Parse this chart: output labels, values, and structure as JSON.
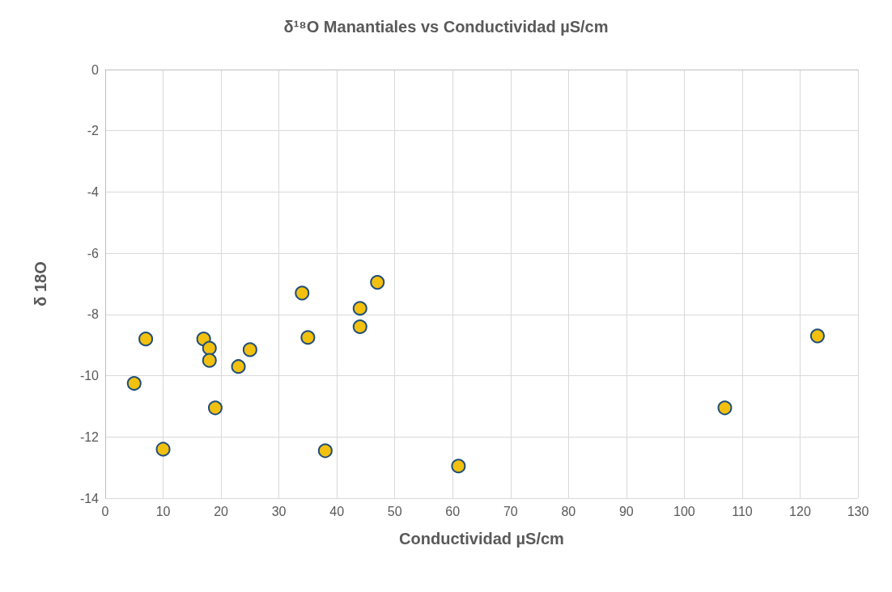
{
  "chart_data": {
    "type": "scatter",
    "title": "δ¹⁸O Manantiales vs Conductividad µS/cm",
    "xlabel": "Conductividad µS/cm",
    "ylabel": "δ 18O",
    "series": [
      {
        "color": "#f2c00f",
        "x": [
          5,
          7,
          10,
          17,
          18,
          18,
          19,
          23,
          25,
          34,
          35,
          38,
          44,
          44,
          47,
          61,
          107,
          123
        ],
        "values": [
          -10.25,
          -8.8,
          -12.4,
          -8.8,
          -9.1,
          -9.5,
          -11.05,
          -9.7,
          -9.15,
          -7.3,
          -8.75,
          -12.45,
          -7.8,
          -8.4,
          -6.95,
          -12.95,
          -11.05,
          -8.7
        ]
      }
    ],
    "xlim": [
      0,
      130
    ],
    "xticks": [
      0,
      10,
      20,
      30,
      40,
      50,
      60,
      70,
      80,
      90,
      100,
      110,
      120,
      130
    ],
    "ylim": [
      -14,
      0
    ],
    "yticks": [
      -14,
      -12,
      -10,
      -8,
      -6,
      -4,
      -2,
      0
    ],
    "grid": true,
    "marker": "circle"
  }
}
